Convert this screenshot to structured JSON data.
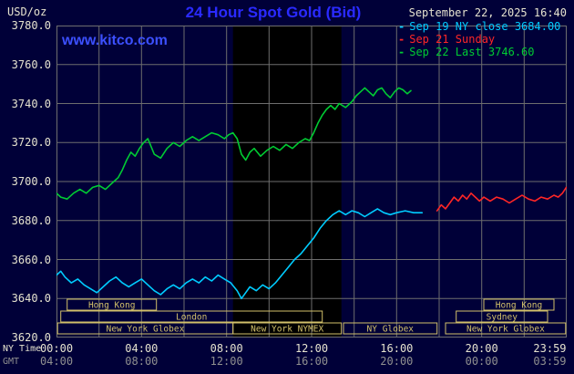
{
  "header": {
    "units": "USD/oz",
    "title": "24 Hour Spot Gold (Bid)",
    "datetime": "September 22, 2025 16:40",
    "watermark": "www.kitco.com"
  },
  "legend_marker": "-",
  "colors": {
    "bg": "#000038",
    "title": "#2a2aff",
    "watermark": "#3c50ff",
    "text": "#e6e3cf",
    "dim": "#909090",
    "grid": "#6e6e6e",
    "session": "#d2c06a"
  },
  "axes": {
    "y_ticks": [
      "3780.0",
      "3760.0",
      "3740.0",
      "3720.0",
      "3700.0",
      "3680.0",
      "3660.0",
      "3640.0",
      "3620.0"
    ],
    "x_ny": {
      "label": "NY Time",
      "ticks": [
        {
          "text": "00:00",
          "hour": 0
        },
        {
          "text": "04:00",
          "hour": 4
        },
        {
          "text": "08:00",
          "hour": 8
        },
        {
          "text": "12:00",
          "hour": 12
        },
        {
          "text": "16:00",
          "hour": 16
        },
        {
          "text": "20:00",
          "hour": 20
        },
        {
          "text": "23:59",
          "hour": 23.98
        }
      ]
    },
    "x_gmt": {
      "label": "GMT",
      "ticks": [
        {
          "text": "04:00",
          "hour": 0
        },
        {
          "text": "08:00",
          "hour": 4
        },
        {
          "text": "12:00",
          "hour": 8
        },
        {
          "text": "16:00",
          "hour": 12
        },
        {
          "text": "20:00",
          "hour": 16
        },
        {
          "text": "00:00",
          "hour": 20
        },
        {
          "text": "03:59",
          "hour": 23.98
        }
      ]
    }
  },
  "sessions": {
    "color": "#d2c06a",
    "rows": [
      [
        {
          "label": "Hong Kong",
          "from": 0.5,
          "to": 4.7
        },
        {
          "label": "Hong Kong",
          "from": 20.1,
          "to": 23.4
        }
      ],
      [
        {
          "label": "London",
          "from": 0.2,
          "to": 12.5
        },
        {
          "label": "Sydney",
          "from": 18.8,
          "to": 23.1
        }
      ],
      [
        {
          "label": "New York Globex",
          "from": 0.05,
          "to": 8.3
        },
        {
          "label": "New York NYMEX",
          "from": 8.3,
          "to": 13.4
        },
        {
          "label": "NY Globex",
          "from": 13.5,
          "to": 17.9
        },
        {
          "label": "New York Globex",
          "from": 18.3,
          "to": 23.95
        }
      ]
    ]
  },
  "chart_data": {
    "type": "line",
    "title": "24 Hour Spot Gold (Bid)",
    "xlabel": "NY Time (hours, 00:00-23:59)",
    "ylabel": "USD/oz",
    "xlim": [
      0,
      24
    ],
    "ylim": [
      3620,
      3780
    ],
    "x_grid_step_hours": 2,
    "y_grid_step": 20,
    "grid": true,
    "legend_position": "top-right",
    "shaded_band": {
      "from_hour": 8.3,
      "to_hour": 13.4,
      "color": "#000000"
    },
    "series": [
      {
        "name": "Sep 19 NY close 3684.00",
        "color": "#00ccff",
        "points": [
          [
            0,
            3652
          ],
          [
            0.2,
            3654
          ],
          [
            0.4,
            3651
          ],
          [
            0.7,
            3648
          ],
          [
            1.0,
            3650
          ],
          [
            1.3,
            3647
          ],
          [
            1.6,
            3645
          ],
          [
            1.9,
            3643
          ],
          [
            2.2,
            3646
          ],
          [
            2.5,
            3649
          ],
          [
            2.8,
            3651
          ],
          [
            3.1,
            3648
          ],
          [
            3.4,
            3646
          ],
          [
            3.7,
            3648
          ],
          [
            4.0,
            3650
          ],
          [
            4.3,
            3647
          ],
          [
            4.6,
            3644
          ],
          [
            4.9,
            3642
          ],
          [
            5.2,
            3645
          ],
          [
            5.5,
            3647
          ],
          [
            5.8,
            3645
          ],
          [
            6.1,
            3648
          ],
          [
            6.4,
            3650
          ],
          [
            6.7,
            3648
          ],
          [
            7.0,
            3651
          ],
          [
            7.3,
            3649
          ],
          [
            7.6,
            3652
          ],
          [
            7.9,
            3650
          ],
          [
            8.2,
            3648
          ],
          [
            8.5,
            3644
          ],
          [
            8.7,
            3640
          ],
          [
            8.9,
            3643
          ],
          [
            9.1,
            3646
          ],
          [
            9.4,
            3644
          ],
          [
            9.7,
            3647
          ],
          [
            10.0,
            3645
          ],
          [
            10.3,
            3648
          ],
          [
            10.6,
            3652
          ],
          [
            10.9,
            3656
          ],
          [
            11.2,
            3660
          ],
          [
            11.5,
            3663
          ],
          [
            11.8,
            3667
          ],
          [
            12.1,
            3671
          ],
          [
            12.4,
            3676
          ],
          [
            12.7,
            3680
          ],
          [
            13.0,
            3683
          ],
          [
            13.3,
            3685
          ],
          [
            13.6,
            3683
          ],
          [
            13.9,
            3685
          ],
          [
            14.2,
            3684
          ],
          [
            14.5,
            3682
          ],
          [
            14.8,
            3684
          ],
          [
            15.1,
            3686
          ],
          [
            15.4,
            3684
          ],
          [
            15.7,
            3683
          ],
          [
            16.0,
            3684
          ],
          [
            16.4,
            3685
          ],
          [
            16.8,
            3684
          ],
          [
            17.2,
            3684
          ]
        ]
      },
      {
        "name": "Sep 21 Sunday",
        "color": "#ff2626",
        "points": [
          [
            17.9,
            3685
          ],
          [
            18.1,
            3688
          ],
          [
            18.3,
            3686
          ],
          [
            18.5,
            3689
          ],
          [
            18.7,
            3692
          ],
          [
            18.9,
            3690
          ],
          [
            19.1,
            3693
          ],
          [
            19.3,
            3691
          ],
          [
            19.5,
            3694
          ],
          [
            19.7,
            3692
          ],
          [
            19.9,
            3690
          ],
          [
            20.1,
            3692
          ],
          [
            20.4,
            3690
          ],
          [
            20.7,
            3692
          ],
          [
            21.0,
            3691
          ],
          [
            21.3,
            3689
          ],
          [
            21.6,
            3691
          ],
          [
            21.9,
            3693
          ],
          [
            22.2,
            3691
          ],
          [
            22.5,
            3690
          ],
          [
            22.8,
            3692
          ],
          [
            23.1,
            3691
          ],
          [
            23.4,
            3693
          ],
          [
            23.6,
            3692
          ],
          [
            23.8,
            3694
          ],
          [
            23.98,
            3697
          ]
        ]
      },
      {
        "name": "Sep 22 Last 3746.60",
        "color": "#00cc33",
        "points": [
          [
            0,
            3694
          ],
          [
            0.2,
            3692
          ],
          [
            0.5,
            3691
          ],
          [
            0.8,
            3694
          ],
          [
            1.1,
            3696
          ],
          [
            1.4,
            3694
          ],
          [
            1.7,
            3697
          ],
          [
            2.0,
            3698
          ],
          [
            2.3,
            3696
          ],
          [
            2.6,
            3699
          ],
          [
            2.9,
            3702
          ],
          [
            3.1,
            3706
          ],
          [
            3.3,
            3711
          ],
          [
            3.5,
            3715
          ],
          [
            3.7,
            3713
          ],
          [
            3.9,
            3717
          ],
          [
            4.1,
            3720
          ],
          [
            4.3,
            3722
          ],
          [
            4.6,
            3714
          ],
          [
            4.9,
            3712
          ],
          [
            5.2,
            3717
          ],
          [
            5.5,
            3720
          ],
          [
            5.8,
            3718
          ],
          [
            6.1,
            3721
          ],
          [
            6.4,
            3723
          ],
          [
            6.7,
            3721
          ],
          [
            7.0,
            3723
          ],
          [
            7.3,
            3725
          ],
          [
            7.6,
            3724
          ],
          [
            7.9,
            3722
          ],
          [
            8.1,
            3724
          ],
          [
            8.3,
            3725
          ],
          [
            8.5,
            3722
          ],
          [
            8.7,
            3714
          ],
          [
            8.9,
            3711
          ],
          [
            9.1,
            3715
          ],
          [
            9.3,
            3717
          ],
          [
            9.6,
            3713
          ],
          [
            9.9,
            3716
          ],
          [
            10.2,
            3718
          ],
          [
            10.5,
            3716
          ],
          [
            10.8,
            3719
          ],
          [
            11.1,
            3717
          ],
          [
            11.4,
            3720
          ],
          [
            11.7,
            3722
          ],
          [
            11.9,
            3721
          ],
          [
            12.1,
            3725
          ],
          [
            12.3,
            3730
          ],
          [
            12.5,
            3734
          ],
          [
            12.7,
            3737
          ],
          [
            12.9,
            3739
          ],
          [
            13.1,
            3737
          ],
          [
            13.3,
            3740
          ],
          [
            13.6,
            3738
          ],
          [
            13.9,
            3741
          ],
          [
            14.1,
            3744
          ],
          [
            14.3,
            3746
          ],
          [
            14.5,
            3748
          ],
          [
            14.7,
            3746
          ],
          [
            14.9,
            3744
          ],
          [
            15.1,
            3747
          ],
          [
            15.3,
            3748
          ],
          [
            15.5,
            3745
          ],
          [
            15.7,
            3743
          ],
          [
            15.9,
            3746
          ],
          [
            16.1,
            3748
          ],
          [
            16.3,
            3747
          ],
          [
            16.5,
            3745
          ],
          [
            16.67,
            3746.6
          ]
        ]
      }
    ]
  }
}
